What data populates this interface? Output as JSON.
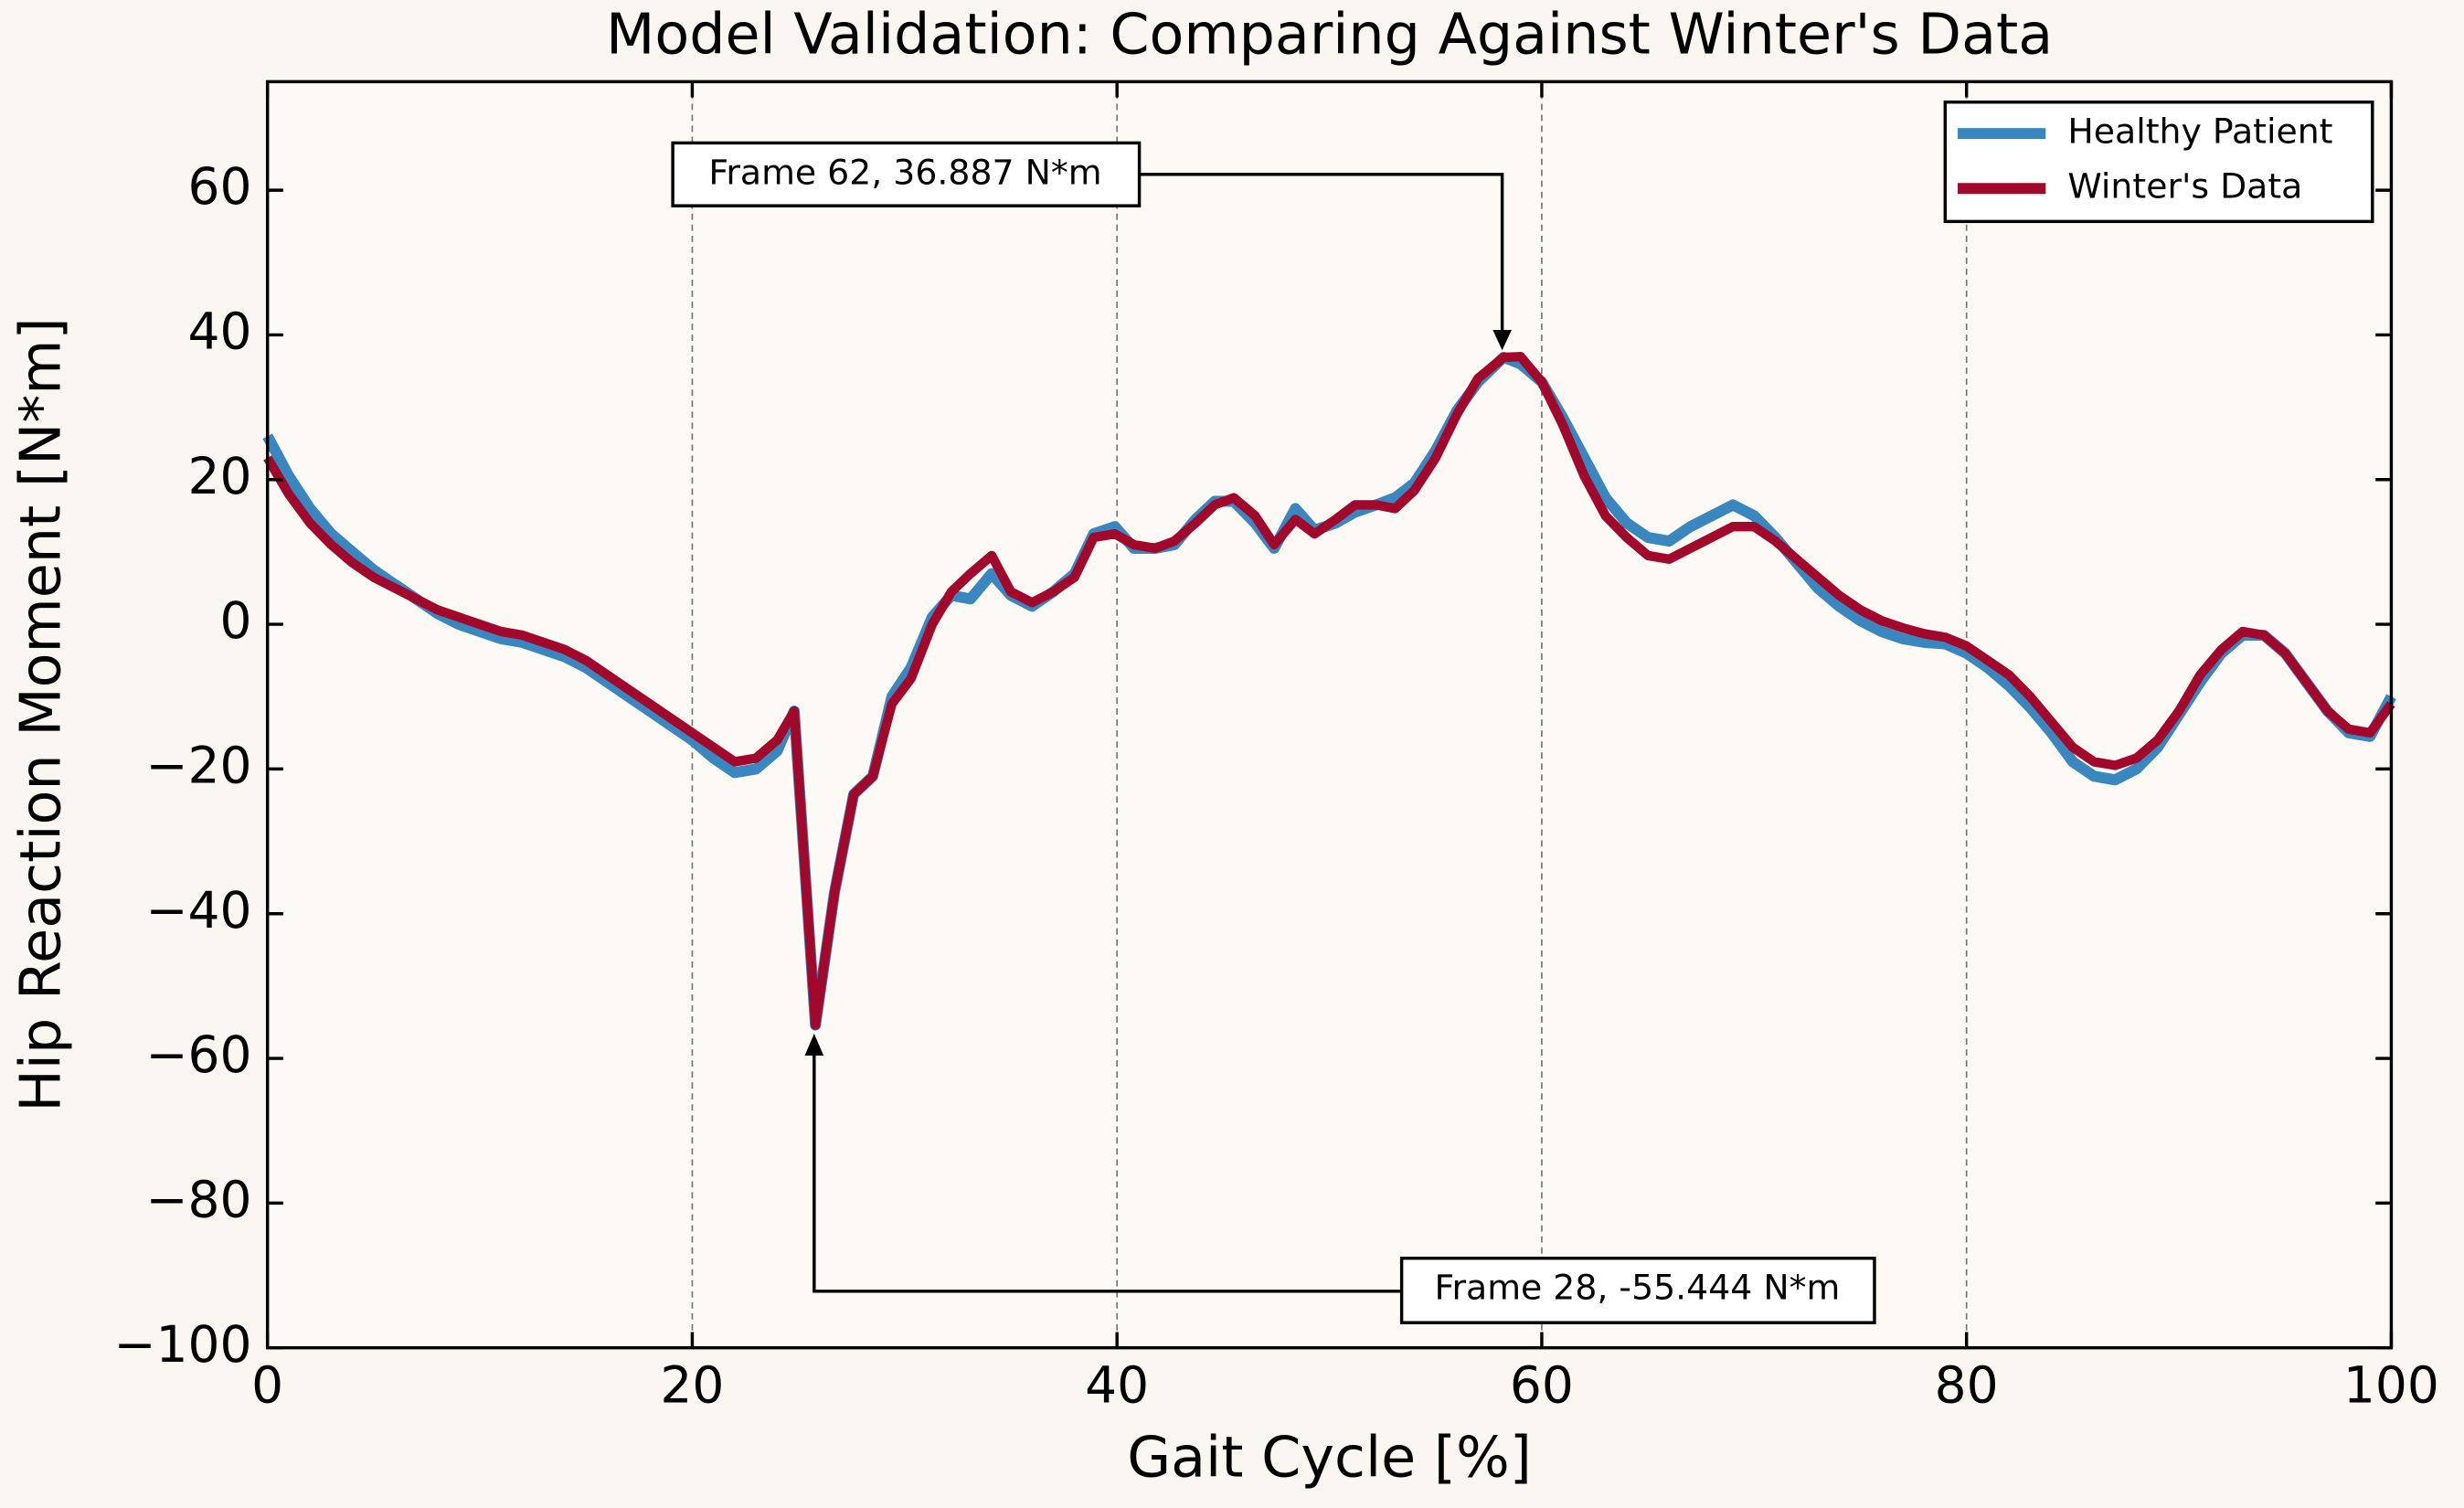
{
  "chart_data": {
    "type": "line",
    "title": "Model Validation: Comparing Against Winter's Data",
    "xlabel": "Gait Cycle [%]",
    "ylabel": "Hip Reaction Moment [N*m]",
    "x": [
      0,
      1,
      2,
      3,
      4,
      5,
      6,
      7,
      8,
      9,
      10,
      11,
      12,
      13,
      14,
      15,
      16,
      17,
      18,
      19,
      20,
      21,
      22,
      23,
      24,
      24.8,
      25.8,
      26.7,
      27.6,
      28.5,
      29.4,
      30.3,
      31.3,
      32.2,
      33.1,
      34.1,
      35,
      36,
      37,
      38,
      38.9,
      39.9,
      40.8,
      41.8,
      42.7,
      43.7,
      44.6,
      45.5,
      46.5,
      47.4,
      48.4,
      49.3,
      50.3,
      51.2,
      52.2,
      53.1,
      54,
      55,
      56,
      57,
      58.2,
      59,
      60,
      61,
      62,
      63,
      64,
      65,
      66,
      67,
      68,
      69,
      70,
      71,
      72,
      73,
      74,
      75,
      76,
      77,
      78,
      79,
      80,
      81,
      82,
      83,
      84,
      85,
      86,
      87,
      88,
      89,
      90,
      91,
      92,
      93,
      94,
      95,
      96,
      97,
      98,
      99,
      100
    ],
    "series": [
      {
        "name": "Healthy Patient",
        "color": "#3a87c0",
        "values": [
          26,
          20.5,
          16,
          12.5,
          10,
          7.5,
          5.5,
          3.5,
          1.5,
          0,
          -1,
          -2,
          -2.5,
          -3.5,
          -4.5,
          -6,
          -8,
          -10,
          -12,
          -14,
          -16,
          -18.5,
          -20.5,
          -20,
          -17.5,
          -12,
          -55.4,
          -37,
          -23.5,
          -21,
          -10,
          -6,
          1,
          4,
          3.5,
          7,
          4,
          2.5,
          4.5,
          7,
          12.5,
          13.5,
          10.5,
          10.5,
          11,
          14.5,
          17,
          17,
          14,
          10.5,
          16,
          13,
          14,
          15.5,
          16.5,
          17.5,
          19.5,
          24,
          29.5,
          33.5,
          36.9,
          36,
          33.5,
          28.5,
          23,
          17.5,
          14,
          12,
          11.5,
          13.5,
          15,
          16.5,
          15,
          12,
          8.5,
          5,
          2.5,
          0.5,
          -1,
          -2,
          -2.5,
          -2.7,
          -4,
          -6,
          -8.5,
          -11.5,
          -15,
          -19,
          -21,
          -21.5,
          -20,
          -17,
          -12.5,
          -8,
          -4,
          -1.5,
          -1.5,
          -4,
          -8,
          -12,
          -15,
          -15.5,
          -10
        ]
      },
      {
        "name": "Winter's Data",
        "color": "#a1082c",
        "values": [
          23,
          18,
          14,
          11,
          8.5,
          6.5,
          5,
          3.5,
          2,
          1,
          0,
          -1,
          -1.5,
          -2.5,
          -3.5,
          -5,
          -7,
          -9,
          -11,
          -13,
          -15,
          -17,
          -19,
          -18.5,
          -16,
          -12,
          -55.4,
          -37,
          -23.5,
          -21,
          -11,
          -7.5,
          0,
          4.5,
          7,
          9.5,
          4.5,
          3,
          4.5,
          6.5,
          12,
          12.5,
          11,
          10.5,
          11.5,
          14,
          16.5,
          17.5,
          15,
          11,
          14.5,
          12.5,
          14.5,
          16.5,
          16.5,
          16,
          18.5,
          23,
          29,
          34,
          36.9,
          37,
          33.5,
          27.5,
          20.5,
          15,
          12,
          9.5,
          9,
          10.5,
          12,
          13.5,
          13.5,
          11.5,
          9,
          6.5,
          4,
          2,
          0.5,
          -0.5,
          -1.3,
          -1.8,
          -3,
          -5,
          -7,
          -10,
          -13.5,
          -17,
          -19,
          -19.5,
          -18.5,
          -16,
          -12,
          -7,
          -3.5,
          -1,
          -1.5,
          -4,
          -8,
          -12,
          -14.5,
          -15,
          -11
        ]
      }
    ],
    "xlim": [
      0,
      100
    ],
    "xticks": [
      0,
      20,
      40,
      60,
      80,
      100
    ],
    "ylim": [
      -100,
      75
    ],
    "yticks": [
      {
        "value": -100,
        "label": "−100"
      },
      {
        "value": -80,
        "label": "−80"
      },
      {
        "value": -60,
        "label": "−60"
      },
      {
        "value": -40,
        "label": "−40"
      },
      {
        "value": -20,
        "label": "−20"
      },
      0,
      20,
      40,
      60
    ],
    "xgrid": true,
    "legend": "upper right",
    "annotations": [
      "Frame 62, 36.887 N*m",
      "Frame 28, -55.444 N*m"
    ]
  }
}
